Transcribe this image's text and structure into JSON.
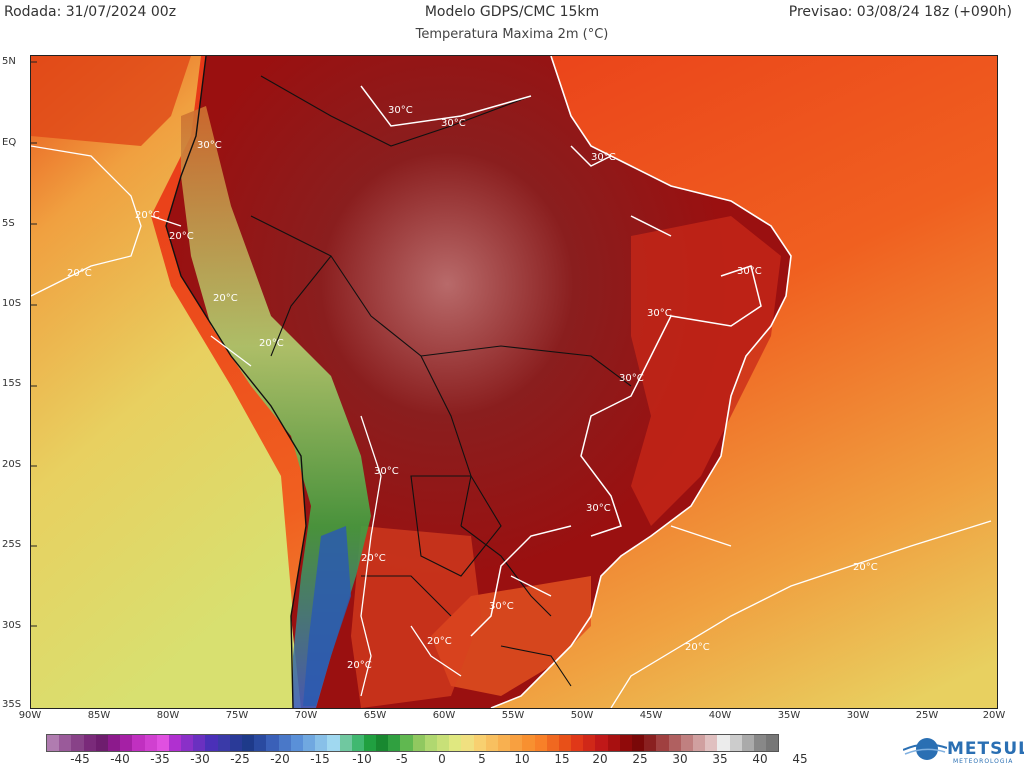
{
  "header": {
    "run": "Rodada: 31/07/2024 00z",
    "model": "Modelo GDPS/CMC 15km",
    "forecast": "Previsao: 03/08/24 18z (+090h)",
    "variable": "Temperatura Maxima 2m (°C)"
  },
  "lat_labels": [
    "5N",
    "EQ",
    "5S",
    "10S",
    "15S",
    "20S",
    "25S",
    "30S",
    "35S"
  ],
  "lon_labels": [
    "90W",
    "85W",
    "80W",
    "75W",
    "70W",
    "65W",
    "60W",
    "55W",
    "50W",
    "45W",
    "40W",
    "35W",
    "30W",
    "25W",
    "20W"
  ],
  "contour_labels": {
    "c1": "30°C",
    "c2": "30°C",
    "c3": "30°C",
    "c4": "30°C",
    "c5": "30°C",
    "c6": "30°C",
    "c7": "30°C",
    "c8": "30°C",
    "c9": "30°C",
    "c10": "30°C",
    "w1": "20°C",
    "w2": "20°C",
    "w3": "20°C",
    "w4": "20°C",
    "w5": "20°C",
    "w6": "20°C",
    "w7": "20°C",
    "w8": "20°C",
    "w9": "20°C",
    "w10": "20°C"
  },
  "colorbar": {
    "ticks": [
      "-45",
      "-40",
      "-35",
      "-30",
      "-25",
      "-20",
      "-15",
      "-10",
      "-5",
      "0",
      "5",
      "10",
      "15",
      "20",
      "25",
      "30",
      "35",
      "40",
      "45"
    ],
    "colors": [
      "#b07cb0",
      "#9a5a9a",
      "#884288",
      "#7a2a7a",
      "#6e1d6e",
      "#8c1a8c",
      "#a520a5",
      "#c030c0",
      "#d040d0",
      "#e050e0",
      "#b030d0",
      "#8a30c8",
      "#6a30c0",
      "#4a30b8",
      "#3a3aa8",
      "#2a3a98",
      "#1e3a8a",
      "#2a4aa0",
      "#3a60b8",
      "#4a78c8",
      "#5a90d8",
      "#70a8e0",
      "#88c0e8",
      "#a0d8f0",
      "#70c8a0",
      "#40b870",
      "#20a040",
      "#188830",
      "#30a040",
      "#60b850",
      "#90c860",
      "#b0d870",
      "#c8e078",
      "#e0e880",
      "#f0e080",
      "#f8d070",
      "#f8c060",
      "#f8b050",
      "#f8a040",
      "#f89030",
      "#f88028",
      "#f06820",
      "#e85018",
      "#e03818",
      "#d02818",
      "#c01818",
      "#a81010",
      "#900a0a",
      "#7a0808",
      "#8a2020",
      "#a04040",
      "#b06060",
      "#c08080",
      "#d0a0a0",
      "#e0c0c0",
      "#ececec",
      "#cccccc",
      "#aaaaaa",
      "#888888",
      "#777777"
    ]
  },
  "logo": {
    "name": "METSUL",
    "sub": "METEOROLOGIA"
  }
}
